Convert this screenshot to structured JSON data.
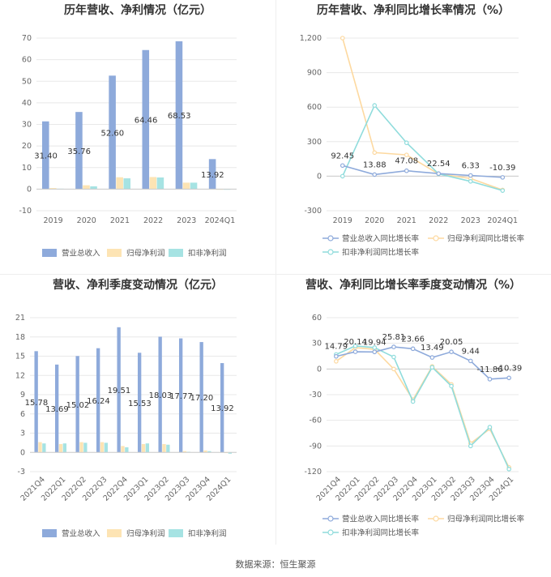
{
  "colors": {
    "revenue": "#8eaadb",
    "net_profit": "#fde4b4",
    "deducted_profit": "#a6e3e3",
    "revenue_line": "#8eaadb",
    "net_profit_line": "#fdd9a0",
    "deducted_line": "#8fdcdc"
  },
  "footer": {
    "text": "数据来源：恒生聚源"
  },
  "chart_data": [
    {
      "id": "annual_bars",
      "type": "bar",
      "title": "历年营收、净利情况（亿元）",
      "categories": [
        "2019",
        "2020",
        "2021",
        "2022",
        "2023",
        "2024Q1"
      ],
      "series": [
        {
          "name": "营业总收入",
          "values": [
            31.4,
            35.76,
            52.6,
            64.46,
            68.53,
            13.92
          ],
          "labels": [
            "31.40",
            "35.76",
            "52.60",
            "64.46",
            "68.53",
            "13.92"
          ]
        },
        {
          "name": "归母净利润",
          "values": [
            0.5,
            1.8,
            5.5,
            5.6,
            3.0,
            -0.2
          ]
        },
        {
          "name": "扣非净利润",
          "values": [
            0.2,
            1.3,
            5.0,
            5.4,
            3.0,
            -0.3
          ]
        }
      ],
      "ylim": [
        -10,
        70
      ],
      "yticks": [
        -10,
        0,
        10,
        20,
        30,
        40,
        50,
        60,
        70
      ],
      "ytick_labels": [
        "-10",
        "0",
        "10",
        "20",
        "30",
        "40",
        "50",
        "60",
        "70"
      ]
    },
    {
      "id": "annual_growth",
      "type": "line",
      "title": "历年营收、净利同比增长率情况（%）",
      "categories": [
        "2019",
        "2020",
        "2021",
        "2022",
        "2023",
        "2024Q1"
      ],
      "series": [
        {
          "name": "营业总收入同比增长率",
          "values": [
            92.45,
            13.88,
            47.08,
            22.54,
            6.33,
            -10.39
          ],
          "labels": [
            "92.45",
            "13.88",
            "47.08",
            "22.54",
            "6.33",
            "-10.39"
          ]
        },
        {
          "name": "归母净利润同比增长率",
          "values": [
            1200,
            205,
            185,
            20,
            -20,
            -120
          ]
        },
        {
          "name": "扣非净利润同比增长率",
          "values": [
            0,
            615,
            290,
            20,
            -45,
            -125
          ]
        }
      ],
      "ylim": [
        -300,
        1200
      ],
      "yticks": [
        -300,
        0,
        300,
        600,
        900,
        1200
      ],
      "ytick_labels": [
        "-300",
        "0",
        "300",
        "600",
        "900",
        "1,200"
      ]
    },
    {
      "id": "quarterly_bars",
      "type": "bar",
      "title": "营收、净利季度变动情况（亿元）",
      "categories": [
        "2021Q4",
        "2022Q1",
        "2022Q2",
        "2022Q3",
        "2022Q4",
        "2023Q1",
        "2023Q2",
        "2023Q3",
        "2023Q4",
        "2024Q1"
      ],
      "series": [
        {
          "name": "营业总收入",
          "values": [
            15.78,
            13.69,
            15.02,
            16.24,
            19.51,
            15.53,
            18.03,
            17.77,
            17.2,
            13.92
          ],
          "labels": [
            "15.78",
            "13.69",
            "15.02",
            "16.24",
            "19.51",
            "15.53",
            "18.03",
            "17.77",
            "17.20",
            "13.92"
          ]
        },
        {
          "name": "归母净利润",
          "values": [
            1.6,
            1.3,
            1.6,
            1.6,
            1.0,
            1.3,
            1.3,
            0.2,
            0.3,
            -0.1
          ]
        },
        {
          "name": "扣非净利润",
          "values": [
            1.4,
            1.4,
            1.5,
            1.5,
            0.8,
            1.4,
            1.2,
            0.1,
            0.2,
            -0.2
          ]
        }
      ],
      "ylim": [
        -3,
        21
      ],
      "yticks": [
        -3,
        0,
        3,
        6,
        9,
        12,
        15,
        18,
        21
      ],
      "ytick_labels": [
        "-3",
        "0",
        "3",
        "6",
        "9",
        "12",
        "15",
        "18",
        "21"
      ]
    },
    {
      "id": "quarterly_growth",
      "type": "line",
      "title": "营收、净利同比增长率季度变动情况（%）",
      "categories": [
        "2021Q4",
        "2022Q1",
        "2022Q2",
        "2022Q3",
        "2022Q4",
        "2023Q1",
        "2023Q2",
        "2023Q3",
        "2023Q4",
        "2024Q1"
      ],
      "series": [
        {
          "name": "营业总收入同比增长率",
          "values": [
            14.79,
            20.14,
            19.94,
            25.81,
            23.66,
            13.49,
            20.05,
            9.44,
            -11.86,
            -10.39
          ],
          "labels": [
            "14.79",
            "20.14",
            "19.94",
            "25.81",
            "23.66",
            "13.49",
            "20.05",
            "9.44",
            "-11.86",
            "-10.39"
          ]
        },
        {
          "name": "归母净利润同比增长率",
          "values": [
            9,
            25,
            23,
            0,
            -36,
            3,
            -18,
            -87,
            -70,
            -115
          ]
        },
        {
          "name": "扣非净利润同比增长率",
          "values": [
            17,
            27,
            25,
            14,
            -38,
            2,
            -20,
            -90,
            -68,
            -117
          ]
        }
      ],
      "ylim": [
        -120,
        60
      ],
      "yticks": [
        -120,
        -90,
        -60,
        -30,
        0,
        30,
        60
      ],
      "ytick_labels": [
        "-120",
        "-90",
        "-60",
        "-30",
        "0",
        "30",
        "60"
      ]
    }
  ]
}
